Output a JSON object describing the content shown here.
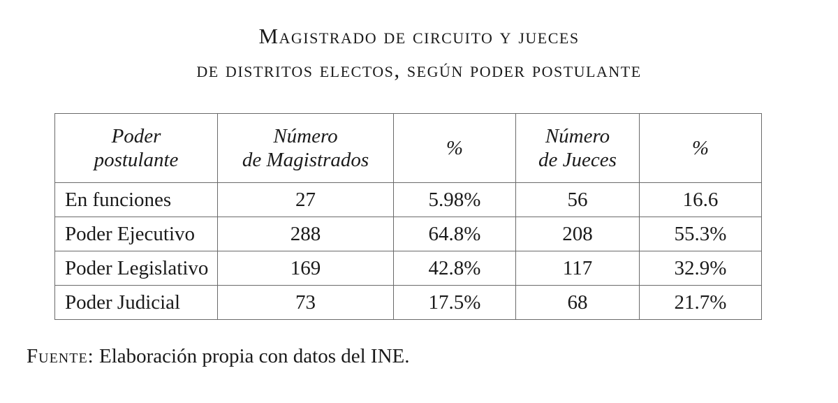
{
  "header": {
    "title_lines": [
      "Magistrado de circuito y jueces",
      "de distritos electos, según poder postulante"
    ]
  },
  "table": {
    "headers": [
      [
        "Poder",
        "postulante"
      ],
      [
        "Número",
        "de Magistrados"
      ],
      [
        "%"
      ],
      [
        "Número",
        "de Jueces"
      ],
      [
        "%"
      ]
    ],
    "rows": [
      [
        "En funciones",
        "27",
        "5.98%",
        "56",
        "16.6"
      ],
      [
        "Poder Ejecutivo",
        "288",
        "64.8%",
        "208",
        "55.3%"
      ],
      [
        "Poder Legislativo",
        "169",
        "42.8%",
        "117",
        "32.9%"
      ],
      [
        "Poder Judicial",
        "73",
        "17.5%",
        "68",
        "21.7%"
      ]
    ]
  },
  "source": {
    "label": "Fuente:",
    "text": "Elaboración propia con datos del INE."
  }
}
